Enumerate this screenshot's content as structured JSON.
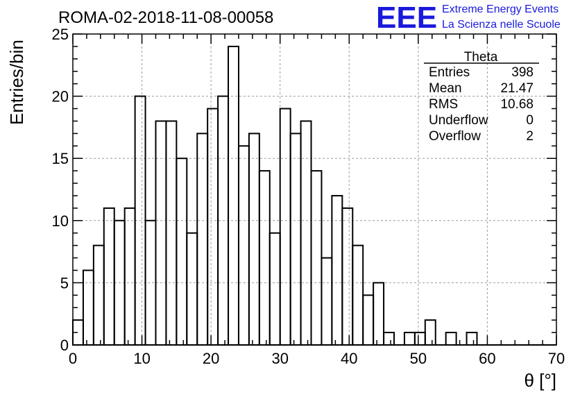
{
  "chart_data": {
    "type": "bar",
    "title": "ROMA-02-2018-11-08-00058",
    "xlabel": "θ [°]",
    "ylabel": "Entries/bin",
    "xlim": [
      0,
      70
    ],
    "ylim": [
      0,
      25
    ],
    "x_ticks": [
      "0",
      "10",
      "20",
      "30",
      "40",
      "50",
      "60",
      "70"
    ],
    "y_ticks": [
      "0",
      "5",
      "10",
      "15",
      "20",
      "25"
    ],
    "grid": true,
    "bin_width": 1.5,
    "bin_edges_start": 0,
    "values": [
      2,
      6,
      8,
      11,
      10,
      11,
      20,
      10,
      18,
      18,
      15,
      9,
      17,
      19,
      20,
      24,
      16,
      17,
      14,
      9,
      19,
      17,
      18,
      14,
      7,
      12,
      11,
      8,
      4,
      5,
      1,
      0,
      1,
      1,
      2,
      0,
      1,
      0,
      1,
      0,
      0,
      0,
      0,
      0,
      0,
      0,
      0
    ]
  },
  "stats_box": {
    "title": "Theta",
    "rows": [
      {
        "label": "Entries",
        "value": "398"
      },
      {
        "label": "Mean",
        "value": "21.47"
      },
      {
        "label": "RMS",
        "value": "10.68"
      },
      {
        "label": "Underflow",
        "value": "0"
      },
      {
        "label": "Overflow",
        "value": "2"
      }
    ]
  },
  "logo": {
    "mark": "EEE",
    "line1": "Extreme Energy Events",
    "line2": "La Scienza nelle Scuole"
  }
}
